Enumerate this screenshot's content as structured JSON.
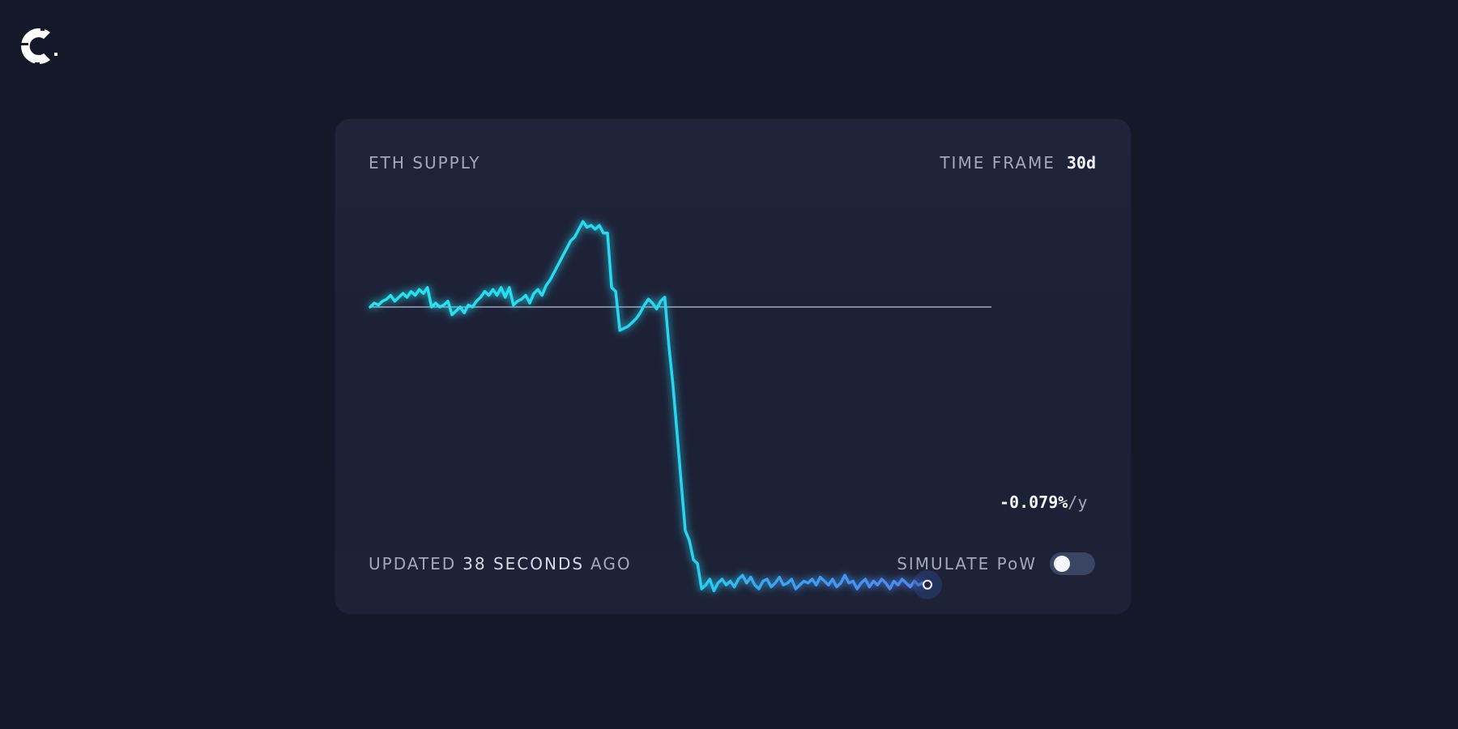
{
  "card": {
    "title": "ETH SUPPLY",
    "time_frame_label": "TIME FRAME",
    "time_frame_value": "30d",
    "rate_value": "-0.079%",
    "rate_unit": "/y",
    "updated_prefix": "UPDATED",
    "updated_value": "38 SECONDS",
    "updated_suffix": "AGO",
    "simulate_label": "SIMULATE PoW",
    "simulate_enabled": false
  },
  "colors": {
    "background": "#141829",
    "card": "#1e2238",
    "line_start": "#27e1f0",
    "line_end": "#4f86f0",
    "baseline": "#c4c8d8"
  },
  "logo_icon": "c-logo-icon",
  "chart_data": {
    "type": "line",
    "title": "ETH SUPPLY",
    "xlabel": "",
    "ylabel": "",
    "grid": false,
    "baseline_value": 0,
    "x": [
      0,
      1,
      2,
      3,
      4,
      5,
      6,
      7,
      8,
      9,
      10,
      11,
      12,
      13,
      14,
      15,
      16,
      17,
      18,
      19,
      20,
      21,
      22,
      23,
      24,
      25,
      26,
      27,
      28,
      29,
      30,
      31,
      32,
      33,
      34,
      35,
      36,
      37,
      38,
      39,
      40,
      41,
      42,
      43,
      44,
      45,
      46,
      47,
      48,
      49,
      50,
      51,
      52,
      53,
      54,
      55,
      56,
      57,
      58,
      59,
      60,
      61,
      62,
      63,
      64,
      65,
      66,
      67,
      68,
      69,
      70,
      71,
      72,
      73,
      74,
      75,
      76,
      77,
      78,
      79,
      80,
      81,
      82,
      83,
      84,
      85,
      86,
      87,
      88,
      89,
      90,
      91,
      92,
      93,
      94,
      95,
      96,
      97,
      98,
      99,
      100,
      101,
      102,
      103,
      104,
      105,
      106,
      107,
      108,
      109,
      110,
      111,
      112,
      113,
      114,
      115,
      116,
      117,
      118,
      119,
      120,
      121,
      122,
      123,
      124,
      125,
      126,
      127,
      128,
      129,
      130,
      131,
      132,
      133,
      134,
      135
    ],
    "values": [
      0.0,
      0.2,
      0.1,
      0.3,
      0.4,
      0.6,
      0.3,
      0.5,
      0.7,
      0.5,
      0.8,
      0.6,
      0.9,
      0.7,
      1.0,
      0.0,
      0.2,
      0.0,
      0.1,
      0.3,
      -0.4,
      -0.2,
      0.0,
      -0.3,
      0.1,
      0.0,
      0.3,
      0.5,
      0.8,
      0.6,
      0.9,
      0.6,
      1.0,
      0.5,
      1.0,
      0.1,
      0.3,
      0.4,
      0.6,
      0.2,
      0.7,
      0.9,
      0.6,
      1.1,
      1.4,
      1.8,
      2.2,
      2.6,
      3.0,
      3.4,
      3.6,
      4.0,
      4.4,
      4.1,
      4.2,
      4.0,
      4.2,
      3.8,
      3.8,
      1.0,
      0.8,
      -1.2,
      -1.1,
      -1.0,
      -0.8,
      -0.6,
      -0.3,
      0.1,
      0.4,
      0.2,
      -0.1,
      0.3,
      0.5,
      -2.0,
      -4.0,
      -6.5,
      -9.0,
      -11.5,
      -12.0,
      -13.0,
      -13.2,
      -14.5,
      -14.3,
      -14.0,
      -14.6,
      -14.2,
      -14.0,
      -14.3,
      -14.1,
      -14.4,
      -14.0,
      -13.8,
      -14.2,
      -13.9,
      -14.3,
      -14.5,
      -14.1,
      -14.0,
      -14.4,
      -14.2,
      -13.9,
      -14.3,
      -14.2,
      -14.0,
      -14.5,
      -14.3,
      -14.1,
      -14.2,
      -14.0,
      -14.3,
      -13.9,
      -14.1,
      -14.3,
      -14.0,
      -14.4,
      -14.2,
      -13.8,
      -14.2,
      -14.1,
      -14.5,
      -14.2,
      -14.0,
      -14.4,
      -14.1,
      -14.3,
      -14.0,
      -14.2,
      -14.5,
      -14.1,
      -14.3,
      -14.0,
      -14.2,
      -14.4,
      -14.1,
      -14.3,
      -14.2
    ],
    "end_label": "-0.079%/y"
  }
}
